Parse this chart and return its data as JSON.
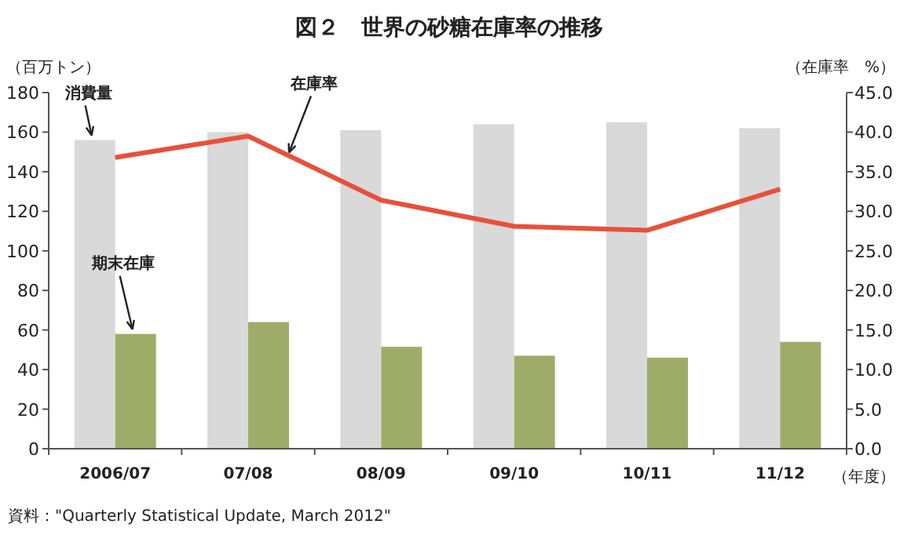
{
  "chart_data": {
    "type": "bar",
    "title": "図２　世界の砂糖在庫率の推移",
    "ylabel": "（百万トン）",
    "y2label": "（在庫率　%）",
    "xlabel": "（年度）",
    "categories": [
      "2006/07",
      "07/08",
      "08/09",
      "09/10",
      "10/11",
      "11/12"
    ],
    "series": [
      {
        "name": "消費量",
        "color": "#d9d9d9",
        "values": [
          156,
          160,
          161,
          164,
          165,
          162
        ]
      },
      {
        "name": "期末在庫",
        "color": "#9fac68",
        "values": [
          58,
          64,
          51.5,
          47,
          46,
          54
        ]
      },
      {
        "name": "在庫率",
        "type": "line",
        "axis": "y2",
        "color": "#e8503a",
        "values": [
          36.8,
          39.5,
          31.4,
          28.1,
          27.6,
          32.8
        ]
      }
    ],
    "ylim": [
      0,
      180
    ],
    "yticks": [
      0,
      20,
      40,
      60,
      80,
      100,
      120,
      140,
      160,
      180
    ],
    "y2lim": [
      0,
      45
    ],
    "y2ticks": [
      {
        "value": 0,
        "label": "0.0"
      },
      {
        "value": 5,
        "label": "5.0"
      },
      {
        "value": 10,
        "label": "10.0"
      },
      {
        "value": 15,
        "label": "15.0"
      },
      {
        "value": 20,
        "label": "20.0"
      },
      {
        "value": 25,
        "label": "25.0"
      },
      {
        "value": 30,
        "label": "30.0"
      },
      {
        "value": 35,
        "label": "35.0"
      },
      {
        "value": 40,
        "label": "40.0"
      },
      {
        "value": 45,
        "label": "45.0"
      }
    ],
    "grid": false,
    "annotations": [
      "資料：\"Quarterly Statistical Update, March 2012\""
    ]
  }
}
